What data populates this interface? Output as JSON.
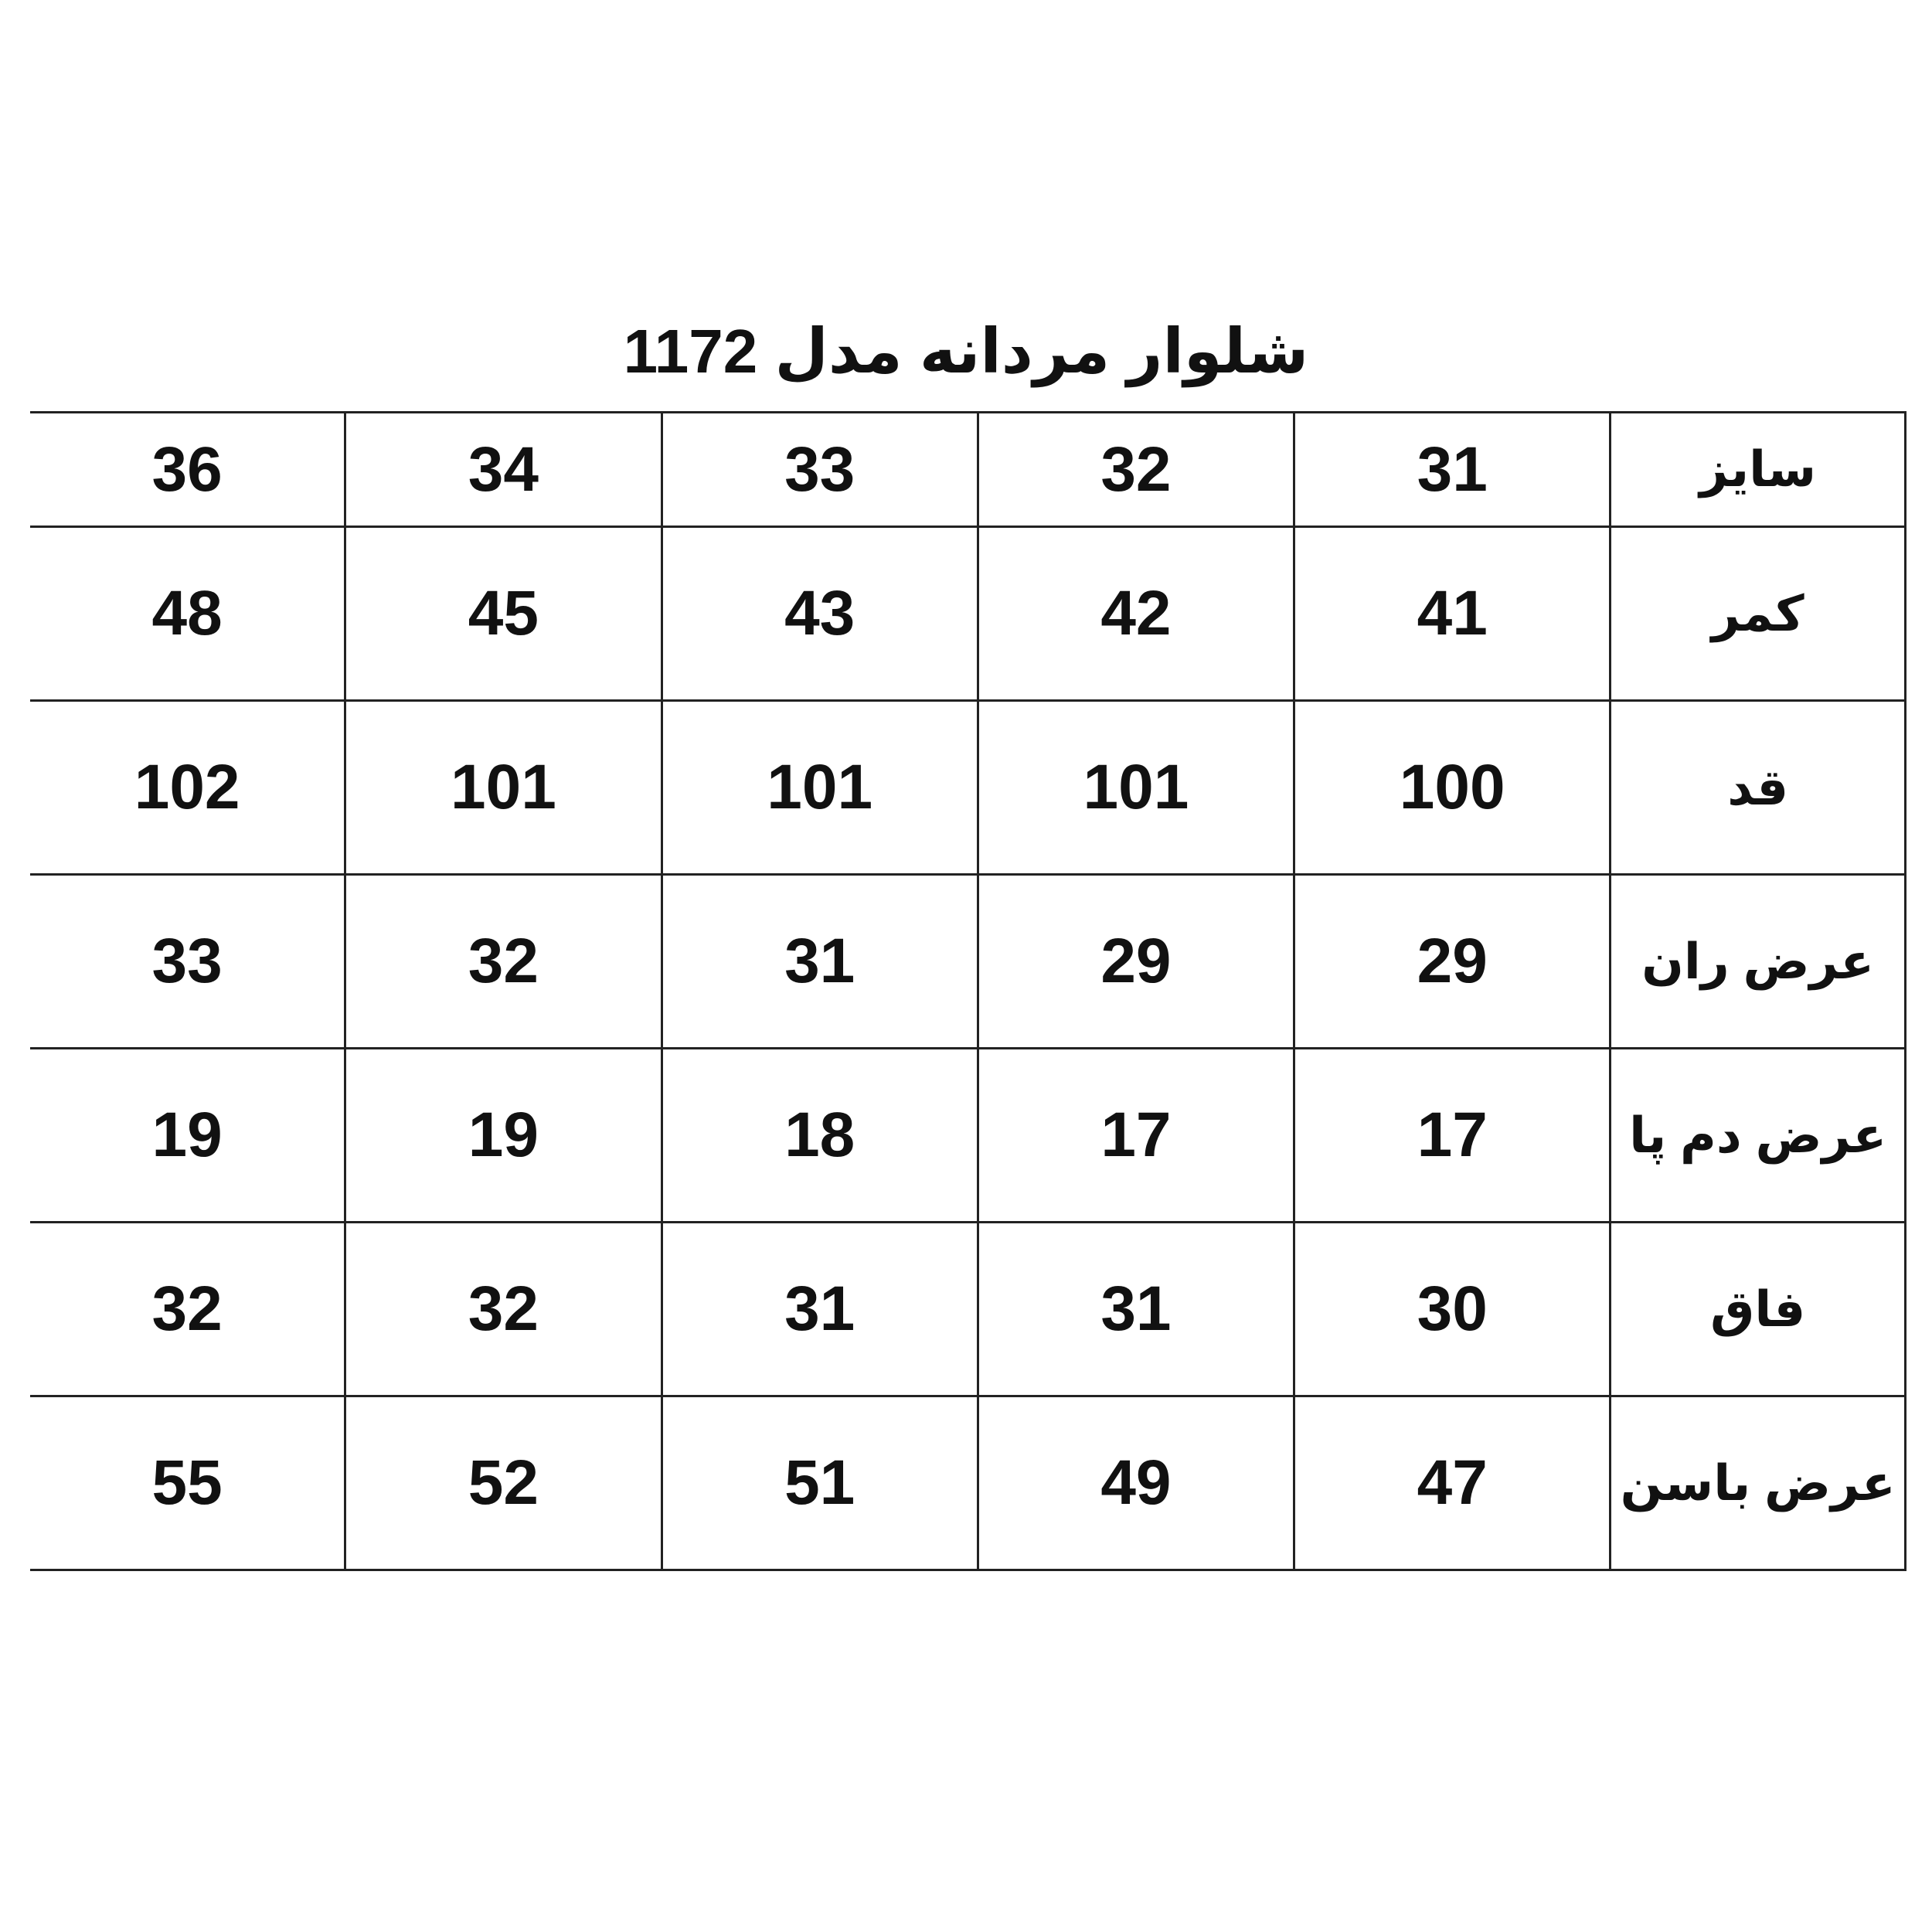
{
  "title": "شلوار مردانه مدل 1172",
  "rows": [
    {
      "label": "سایز",
      "values": [
        "31",
        "32",
        "33",
        "34",
        "36"
      ]
    },
    {
      "label": "کمر",
      "values": [
        "41",
        "42",
        "43",
        "45",
        "48"
      ]
    },
    {
      "label": "قد",
      "values": [
        "100",
        "101",
        "101",
        "101",
        "102"
      ]
    },
    {
      "label": "عرض ران",
      "values": [
        "29",
        "29",
        "31",
        "32",
        "33"
      ]
    },
    {
      "label": "عرض دم پا",
      "values": [
        "17",
        "17",
        "18",
        "19",
        "19"
      ]
    },
    {
      "label": "فاق",
      "values": [
        "30",
        "31",
        "31",
        "32",
        "32"
      ]
    },
    {
      "label": "عرض باسن",
      "values": [
        "47",
        "49",
        "51",
        "52",
        "55"
      ]
    }
  ]
}
